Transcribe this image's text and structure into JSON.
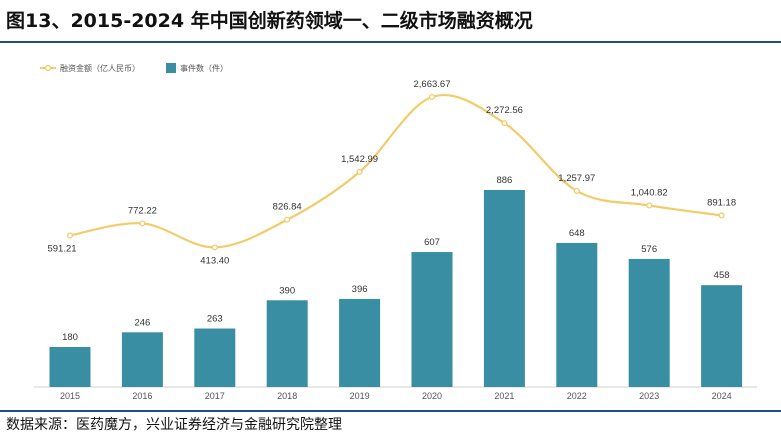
{
  "title": "图13、2015-2024 年中国创新药领域一、二级市场融资概况",
  "source": "数据来源：医药魔方，兴业证券经济与金融研究院整理",
  "colors": {
    "bar": "#3a8ea3",
    "line": "#f2cc6b",
    "rule": "#1f4e8c"
  },
  "chart_data": {
    "type": "bar+line",
    "categories": [
      "2015",
      "2016",
      "2017",
      "2018",
      "2019",
      "2020",
      "2021",
      "2022",
      "2023",
      "2024"
    ],
    "series": [
      {
        "name": "融资金额（亿人民币）",
        "type": "line",
        "values": [
          591.21,
          772.22,
          413.4,
          826.84,
          1542.99,
          2663.67,
          2272.56,
          1257.97,
          1040.82,
          891.18
        ],
        "labels": [
          "591.21",
          "772.22",
          "413.40",
          "826.84",
          "1,542.99",
          "2,663.67",
          "2,272.56",
          "1,257.97",
          "1,040.82",
          "891.18"
        ]
      },
      {
        "name": "事件数（件）",
        "type": "bar",
        "values": [
          180,
          246,
          263,
          390,
          396,
          607,
          886,
          648,
          576,
          458
        ],
        "labels": [
          "180",
          "246",
          "263",
          "390",
          "396",
          "607",
          "886",
          "648",
          "576",
          "458"
        ]
      }
    ],
    "legend": [
      "融资金额（亿人民币）",
      "事件数（件）"
    ],
    "legend_position": "top-left"
  }
}
